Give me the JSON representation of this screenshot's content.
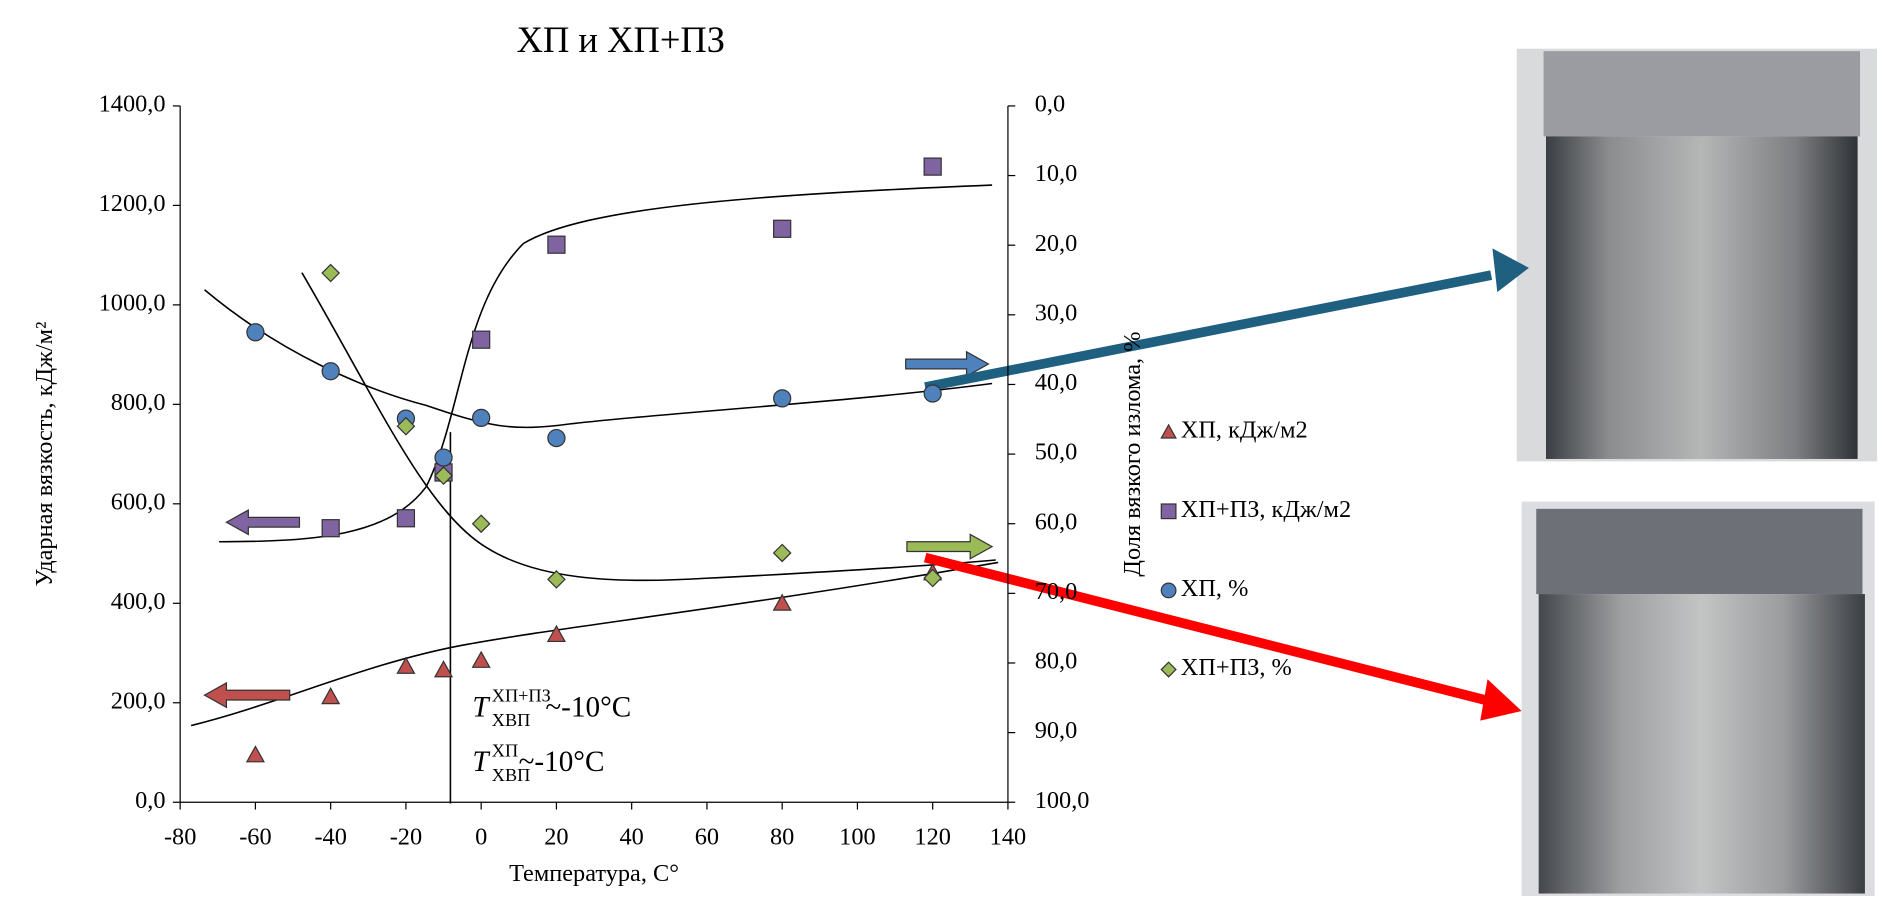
{
  "chart_data": {
    "type": "scatter",
    "title": "ХП и ХП+ПЗ",
    "x_label": "Температура, С°",
    "y_label": "Ударная вязкость, кДж/м²",
    "y2_label": "Доля вязкого излома, %",
    "xlim": [
      -80,
      140
    ],
    "xticks": [
      -80,
      -60,
      -40,
      -20,
      0,
      20,
      40,
      60,
      80,
      100,
      120,
      140
    ],
    "ylim": [
      0,
      1400
    ],
    "yticks": [
      {
        "value": 0,
        "label": "0,0"
      },
      {
        "value": 200,
        "label": "200,0"
      },
      {
        "value": 400,
        "label": "400,0"
      },
      {
        "value": 600,
        "label": "600,0"
      },
      {
        "value": 800,
        "label": "800,0"
      },
      {
        "value": 1000,
        "label": "1000,0"
      },
      {
        "value": 1200,
        "label": "1200,0"
      },
      {
        "value": 1400,
        "label": "1400,0"
      }
    ],
    "y2lim": [
      100,
      0
    ],
    "y2ticks": [
      {
        "value": 0,
        "label": "0,0"
      },
      {
        "value": 10,
        "label": "10,0"
      },
      {
        "value": 20,
        "label": "20,0"
      },
      {
        "value": 30,
        "label": "30,0"
      },
      {
        "value": 40,
        "label": "40,0"
      },
      {
        "value": 50,
        "label": "50,0"
      },
      {
        "value": 60,
        "label": "60,0"
      },
      {
        "value": 70,
        "label": "70,0"
      },
      {
        "value": 80,
        "label": "80,0"
      },
      {
        "value": 90,
        "label": "90,0"
      },
      {
        "value": 100,
        "label": "100,0"
      }
    ],
    "series": [
      {
        "name": "ХП, кДж/м2",
        "color": "#c0504d",
        "marker": "triangle",
        "x": [
          -60,
          -40,
          -20,
          -10,
          0,
          20,
          80,
          120
        ],
        "values": [
          95,
          212,
          273,
          266,
          285,
          337,
          400,
          461
        ]
      },
      {
        "name": "ХП+ПЗ, кДж/м2",
        "color": "#8064a2",
        "marker": "square",
        "x": [
          -40,
          -20,
          -10,
          0,
          20,
          80,
          120
        ],
        "values": [
          551,
          571,
          663,
          930,
          1121,
          1153,
          1278
        ]
      },
      {
        "name": "ХП, %",
        "color": "#4f81bd",
        "marker": "circle",
        "axis": "y2",
        "x": [
          -60,
          -40,
          -20,
          -10,
          0,
          20,
          80,
          120
        ],
        "values": [
          32.5,
          38.1,
          44.9,
          50.5,
          44.8,
          47.7,
          42.0,
          41.3
        ]
      },
      {
        "name": "ХП+ПЗ, %",
        "color": "#9bbb59",
        "marker": "diamond",
        "axis": "y2",
        "x": [
          -40,
          -20,
          -10,
          0,
          20,
          80,
          120
        ],
        "values": [
          24.0,
          46.0,
          53.1,
          60.0,
          68.0,
          64.2,
          67.8
        ]
      }
    ],
    "annotations": [
      {
        "text": "T",
        "sub": "ХВП",
        "sup": "ХП+ПЗ",
        "rest": "~-10°C"
      },
      {
        "text": "T",
        "sub": "ХВП",
        "sup": "ХП",
        "rest": "~-10°C"
      }
    ]
  }
}
